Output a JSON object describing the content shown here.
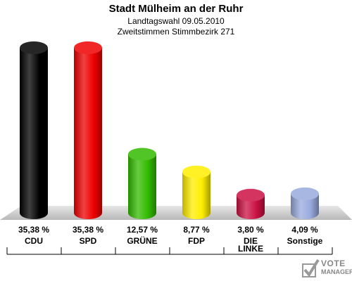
{
  "title": "Stadt Mülheim an der Ruhr",
  "subtitle1": "Landtagswahl 09.05.2010",
  "subtitle2": "Zweitstimmen Stimmbezirk 271",
  "logo": {
    "line1": "VOTE",
    "line2": "MANAGER"
  },
  "chart_data": {
    "type": "bar",
    "categories": [
      "CDU",
      "SPD",
      "GRÜNE",
      "FDP",
      "DIE LINKE",
      "Sonstige"
    ],
    "values": [
      35.38,
      35.38,
      12.57,
      8.77,
      3.8,
      4.09
    ],
    "value_labels": [
      "35,38 %",
      "35,38 %",
      "12,57 %",
      "8,77 %",
      "3,80 %",
      "4,09 %"
    ],
    "colors": [
      "#000000",
      "#ee0000",
      "#33bb00",
      "#ffee00",
      "#cc1144",
      "#99aadd"
    ],
    "ylim": [
      0,
      35.38
    ]
  }
}
